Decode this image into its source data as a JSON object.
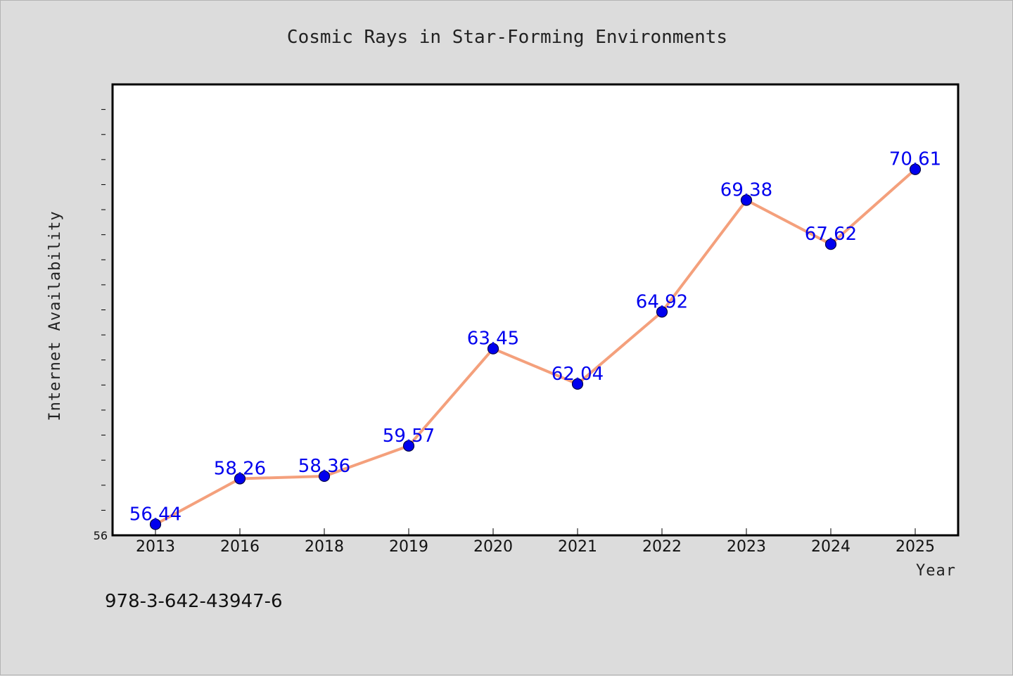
{
  "chart_data": {
    "type": "line",
    "title": "Cosmic Rays in Star-Forming Environments",
    "xlabel": "Year",
    "ylabel": "Internet Availability",
    "categories": [
      "2013",
      "2016",
      "2018",
      "2019",
      "2020",
      "2021",
      "2022",
      "2023",
      "2024",
      "2025"
    ],
    "series": [
      {
        "values": [
          56.44,
          58.26,
          58.36,
          59.57,
          63.45,
          62.04,
          64.92,
          69.38,
          67.62,
          70.61
        ]
      }
    ],
    "data_labels": [
      "56.44",
      "58.26",
      "58.36",
      "59.57",
      "63.45",
      "62.04",
      "64.92",
      "69.38",
      "67.62",
      "70.61"
    ],
    "ylim": [
      56,
      74
    ],
    "y_min_tick_label": "56",
    "grid": false,
    "legend": "none",
    "colors": {
      "line": "#f4a07c",
      "marker_fill": "#0000ee",
      "marker_stroke": "#000044",
      "data_label": "#0000ee",
      "plot_background": "#ffffff",
      "figure_background": "#dcdcdc"
    }
  },
  "footnote": "978-3-642-43947-6"
}
